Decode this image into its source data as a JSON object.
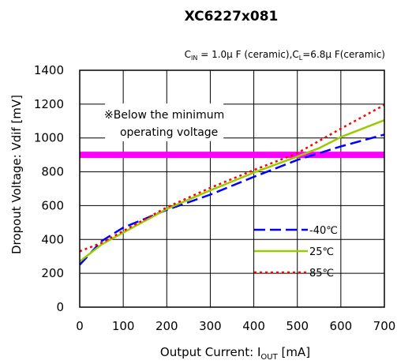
{
  "chart_data": {
    "type": "line",
    "title": "XC6227x081",
    "conditions": {
      "cin_symbol": "C",
      "cin_sub": "IN",
      "cin_value": " = 1.0μ F (ceramic),C",
      "cl_sub": "L",
      "cl_value": "=6.8μ F(ceramic)"
    },
    "xlabel": {
      "main": "Output Current: I",
      "sub": "OUT",
      "unit": " [mA]"
    },
    "ylabel": "Dropout Voltage: Vdif [mV]",
    "xlim": [
      0,
      700
    ],
    "ylim": [
      0,
      1400
    ],
    "x_ticks": [
      "0",
      "100",
      "200",
      "300",
      "400",
      "500",
      "600",
      "700"
    ],
    "y_ticks": [
      "0",
      "200",
      "400",
      "600",
      "800",
      "1000",
      "1200",
      "1400"
    ],
    "grid": true,
    "legend_position": "bottom-right",
    "threshold": {
      "value": 900,
      "color": "#ff00ff"
    },
    "annotation": {
      "line1": "※Below the minimum",
      "line2": "operating voltage"
    },
    "series": [
      {
        "name": "-40℃",
        "color": "#0000ff",
        "dash": "dashed",
        "x": [
          0,
          50,
          100,
          200,
          300,
          400,
          500,
          600,
          700
        ],
        "y": [
          250,
          390,
          470,
          575,
          665,
          770,
          870,
          950,
          1020
        ]
      },
      {
        "name": "25℃",
        "color": "#99cc00",
        "dash": "solid",
        "x": [
          0,
          50,
          100,
          200,
          300,
          400,
          500,
          550,
          600,
          700
        ],
        "y": [
          270,
          370,
          440,
          580,
          690,
          795,
          890,
          940,
          1005,
          1105
        ]
      },
      {
        "name": "85℃",
        "color": "#ff0000",
        "dash": "dotted",
        "x": [
          0,
          50,
          100,
          200,
          300,
          400,
          500,
          600,
          700
        ],
        "y": [
          330,
          380,
          450,
          590,
          705,
          810,
          910,
          1055,
          1195
        ]
      }
    ]
  }
}
